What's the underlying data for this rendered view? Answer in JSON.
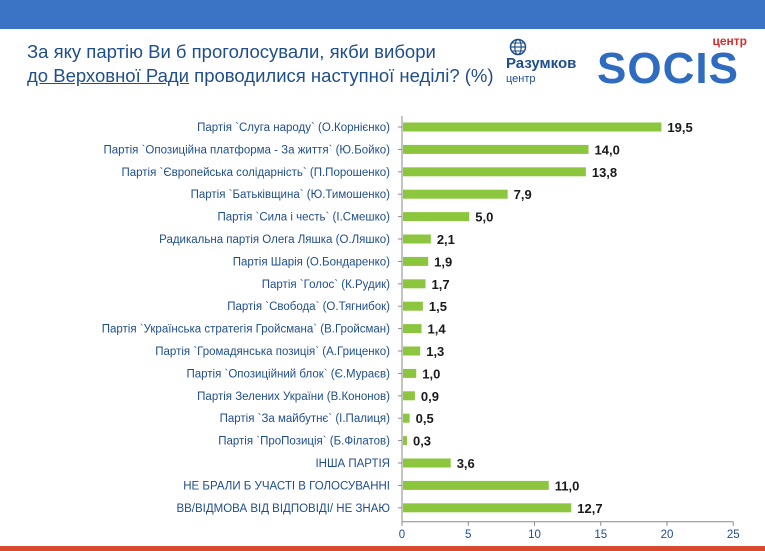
{
  "header": {
    "title_line1": "За яку партію Ви б проголосували, якби вибори",
    "title_line2_underlined": "до Верховної Ради",
    "title_line2_rest": " проводилися наступної неділі? (%)"
  },
  "logos": {
    "razumkov_name": "Разумков",
    "razumkov_sub": "центр",
    "socis_top": "центр",
    "socis_word": "SOCIS"
  },
  "colors": {
    "bar": "#8cc63f",
    "top_bar": "#3b74c4",
    "title": "#1f4e8c",
    "bottom_bar": "#d64b2c"
  },
  "chart_data": {
    "type": "bar",
    "orientation": "horizontal",
    "categories": [
      "Партія `Слуга народу` (О.Корнієнко)",
      "Партія `Опозиційна платформа - За життя` (Ю.Бойко)",
      "Партія `Європейська солідарність` (П.Порошенко)",
      "Партія `Батьківщина` (Ю.Тимошенко)",
      "Партія `Сила і честь` (І.Смешко)",
      "Радикальна партія Олега Ляшка (О.Ляшко)",
      "Партія Шарія (О.Бондаренко)",
      "Партія `Голос` (К.Рудик)",
      "Партія `Свобода` (О.Тягнибок)",
      "Партія `Українська стратегія Гройсмана` (В.Гройсман)",
      "Партія `Громадянська позиція` (А.Гриценко)",
      "Партія `Опозиційний блок` (Є.Мураєв)",
      "Партія Зелених України (В.Кононов)",
      "Партія `За майбутнє` (І.Палиця)",
      "Партія `ПроПозиція` (Б.Філатов)",
      "ІНША ПАРТІЯ",
      "НЕ БРАЛИ Б УЧАСТІ В ГОЛОСУВАННІ",
      "ВВ/ВІДМОВА ВІД ВІДПОВІДІ/ НЕ ЗНАЮ"
    ],
    "values": [
      19.5,
      14.0,
      13.8,
      7.9,
      5.0,
      2.1,
      1.9,
      1.7,
      1.5,
      1.4,
      1.3,
      1.0,
      0.9,
      0.5,
      0.3,
      3.6,
      11.0,
      12.7
    ],
    "value_labels": [
      "19,5",
      "14,0",
      "13,8",
      "7,9",
      "5,0",
      "2,1",
      "1,9",
      "1,7",
      "1,5",
      "1,4",
      "1,3",
      "1,0",
      "0,9",
      "0,5",
      "0,3",
      "3,6",
      "11,0",
      "12,7"
    ],
    "xlim": [
      0,
      25
    ],
    "xticks": [
      "0",
      "5",
      "10",
      "15",
      "20",
      "25"
    ],
    "grid": false
  }
}
